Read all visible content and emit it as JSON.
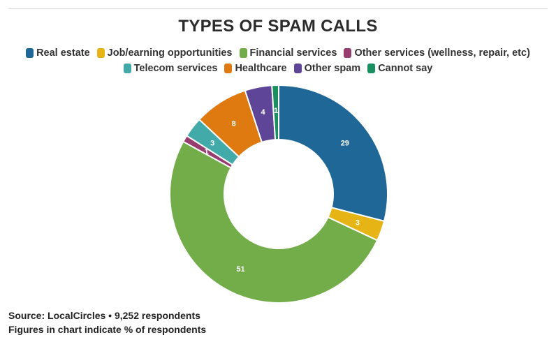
{
  "chart_data": {
    "type": "pie",
    "variant": "donut",
    "title": "TYPES OF SPAM CALLS",
    "legend_position": "top",
    "categories": [
      "Real estate",
      "Job/earning opportunities",
      "Financial services",
      "Other services (wellness, repair, etc)",
      "Telecom services",
      "Healthcare",
      "Other spam",
      "Cannot say"
    ],
    "values": [
      29,
      3,
      51,
      1,
      3,
      8,
      4,
      1
    ],
    "colors": [
      "#1f6796",
      "#e7b416",
      "#72ad4a",
      "#963c6f",
      "#42aaa9",
      "#de7a10",
      "#5f4597",
      "#1a8f5f"
    ],
    "data_labels": [
      "29",
      "3",
      "51",
      "1",
      "3",
      "8",
      "4",
      "1"
    ]
  },
  "footer": {
    "source": "Source: LocalCircles • 9,252 respondents",
    "note": "Figures in chart indicate % of respondents"
  }
}
